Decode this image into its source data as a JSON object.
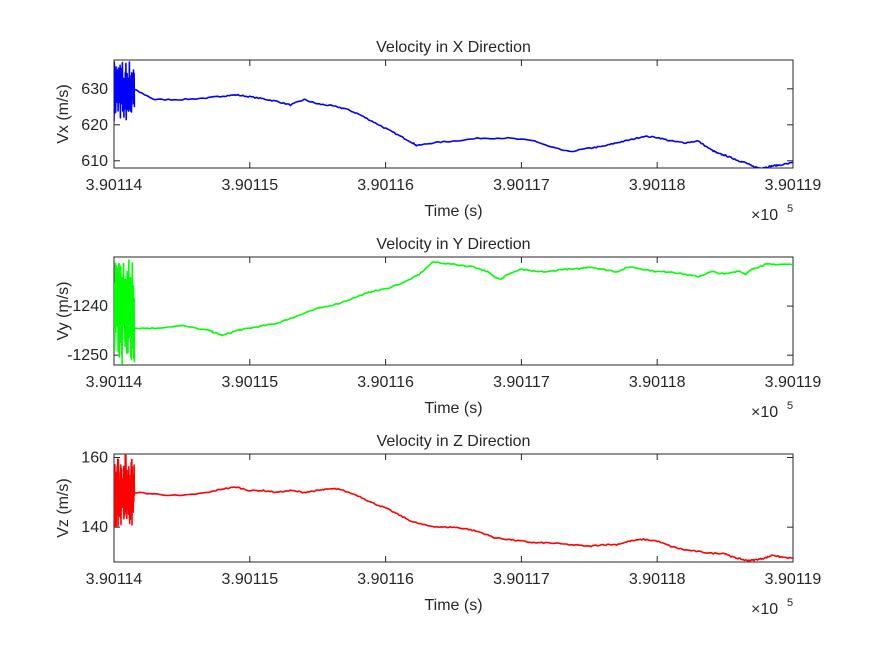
{
  "chart_data": [
    {
      "type": "line",
      "title": "Velocity in X Direction",
      "xlabel": "Time (s)",
      "ylabel": "Vx (m/s)",
      "x_exponent_base": "×10",
      "x_exponent": "5",
      "xlim": [
        3.90114,
        3.90119
      ],
      "ylim": [
        608,
        638
      ],
      "xticks": [
        3.90114,
        3.90115,
        3.90116,
        3.90117,
        3.90118,
        3.90119
      ],
      "xtick_labels": [
        "3.90114",
        "3.90115",
        "3.90116",
        "3.90117",
        "3.90118",
        "3.90119"
      ],
      "yticks": [
        610,
        620,
        630
      ],
      "ytick_labels": [
        "610",
        "620",
        "630"
      ],
      "color": "#0000ff",
      "burst": {
        "x_start": 3.90114,
        "x_end": 3.9011415,
        "y_min": 621,
        "y_max": 638
      },
      "series": [
        {
          "x": [
            3.9011415,
            3.901143,
            3.901145,
            3.901147,
            3.901148,
            3.901149,
            3.90115,
            3.901151,
            3.901152,
            3.901153,
            3.901154,
            3.901155,
            3.901156,
            3.901157,
            3.901158,
            3.901159,
            3.90116,
            3.901161,
            3.901162,
            3.9011623,
            3.9011635,
            3.901165,
            3.901167,
            3.901169,
            3.901171,
            3.901172,
            3.9011735,
            3.901175,
            3.901176,
            3.901177,
            3.901178,
            3.901179,
            3.90118,
            3.901181,
            3.901182,
            3.901183,
            3.901184,
            3.9011845,
            3.901185,
            3.9011855,
            3.901186,
            3.9011865,
            3.901187,
            3.9011875,
            3.901188,
            3.9011885,
            3.901189,
            3.90119
          ],
          "y": [
            629.8,
            627,
            627,
            627.5,
            628,
            628.3,
            627.8,
            627.2,
            626.5,
            625.5,
            627,
            625.8,
            625.3,
            624.5,
            623,
            621,
            619,
            617,
            615,
            614.2,
            615,
            615.5,
            616.3,
            616.3,
            615.5,
            614,
            612.5,
            613.5,
            614,
            615,
            615.8,
            616.8,
            616.5,
            615.5,
            615,
            615.5,
            613,
            612,
            611.5,
            610.8,
            610,
            609.5,
            608.5,
            608,
            608.2,
            608.6,
            608.8,
            609.5
          ]
        }
      ]
    },
    {
      "type": "line",
      "title": "Velocity in Y Direction",
      "xlabel": "Time (s)",
      "ylabel": "Vy (m/s)",
      "x_exponent_base": "×10",
      "x_exponent": "5",
      "xlim": [
        3.90114,
        3.90119
      ],
      "ylim": [
        -1252,
        -1230
      ],
      "xticks": [
        3.90114,
        3.90115,
        3.90116,
        3.90117,
        3.90118,
        3.90119
      ],
      "xtick_labels": [
        "3.90114",
        "3.90115",
        "3.90116",
        "3.90117",
        "3.90118",
        "3.90119"
      ],
      "yticks": [
        -1250,
        -1240
      ],
      "ytick_labels": [
        "-1250",
        "-1240"
      ],
      "color": "#00ff00",
      "burst": {
        "x_start": 3.90114,
        "x_end": 3.9011415,
        "y_min": -1252,
        "y_max": -1230
      },
      "series": [
        {
          "x": [
            3.9011415,
            3.901143,
            3.901145,
            3.901147,
            3.9011475,
            3.901148,
            3.901149,
            3.90115,
            3.901151,
            3.901152,
            3.901153,
            3.9011535,
            3.901155,
            3.9011565,
            3.901158,
            3.901159,
            3.90116,
            3.9011615,
            3.9011625,
            3.9011635,
            3.901165,
            3.9011665,
            3.9011675,
            3.901168,
            3.9011685,
            3.901169,
            3.90117,
            3.901171,
            3.901172,
            3.901173,
            3.901174,
            3.901175,
            3.901176,
            3.901177,
            3.901178,
            3.901179,
            3.90118,
            3.901181,
            3.901182,
            3.901183,
            3.901184,
            3.901185,
            3.901186,
            3.9011865,
            3.901187,
            3.9011875,
            3.901188,
            3.901189,
            3.90119
          ],
          "y": [
            -1244.5,
            -1244.5,
            -1244,
            -1245,
            -1245.5,
            -1246,
            -1245,
            -1244.5,
            -1244,
            -1243.5,
            -1242.5,
            -1242,
            -1240.5,
            -1239.5,
            -1238,
            -1237,
            -1236.5,
            -1235,
            -1233.5,
            -1231,
            -1231.5,
            -1232,
            -1233,
            -1234,
            -1234.5,
            -1233.5,
            -1232.5,
            -1233,
            -1233,
            -1232.5,
            -1232.5,
            -1232,
            -1232.5,
            -1233,
            -1232,
            -1232.5,
            -1233,
            -1233,
            -1233.5,
            -1234,
            -1233,
            -1233.5,
            -1232.8,
            -1233.5,
            -1232.5,
            -1232,
            -1231.5,
            -1231.5,
            -1231.5
          ]
        }
      ]
    },
    {
      "type": "line",
      "title": "Velocity in Z Direction",
      "xlabel": "Time (s)",
      "ylabel": "Vz (m/s)",
      "x_exponent_base": "×10",
      "x_exponent": "5",
      "xlim": [
        3.90114,
        3.90119
      ],
      "ylim": [
        130,
        161
      ],
      "xticks": [
        3.90114,
        3.90115,
        3.90116,
        3.90117,
        3.90118,
        3.90119
      ],
      "xtick_labels": [
        "3.90114",
        "3.90115",
        "3.90116",
        "3.90117",
        "3.90118",
        "3.90119"
      ],
      "yticks": [
        140,
        160
      ],
      "ytick_labels": [
        "140",
        "160"
      ],
      "color": "#ff0000",
      "burst": {
        "x_start": 3.90114,
        "x_end": 3.9011415,
        "y_min": 140,
        "y_max": 161
      },
      "series": [
        {
          "x": [
            3.9011415,
            3.901143,
            3.901145,
            3.901147,
            3.901148,
            3.901149,
            3.90115,
            3.901151,
            3.901152,
            3.901153,
            3.901154,
            3.901155,
            3.9011555,
            3.9011565,
            3.901158,
            3.901159,
            3.90116,
            3.901161,
            3.901162,
            3.901163,
            3.901164,
            3.901165,
            3.901166,
            3.901167,
            3.901168,
            3.901169,
            3.90117,
            3.901171,
            3.901172,
            3.9011735,
            3.901175,
            3.901176,
            3.901177,
            3.901178,
            3.901179,
            3.90118,
            3.901181,
            3.901182,
            3.901183,
            3.901184,
            3.901185,
            3.9011855,
            3.901186,
            3.9011865,
            3.901187,
            3.9011875,
            3.901188,
            3.9011885,
            3.901189,
            3.90119
          ],
          "y": [
            150,
            149.5,
            149,
            150,
            151,
            151.5,
            150.5,
            150.5,
            150,
            150.5,
            150,
            150.5,
            150.8,
            151,
            149,
            147,
            145.5,
            143.5,
            141.5,
            140.5,
            140,
            140,
            139.5,
            138.5,
            137,
            136.5,
            136,
            135.5,
            135.5,
            135,
            134.5,
            135,
            135,
            136,
            136.5,
            136,
            134.5,
            133.5,
            133,
            132.5,
            132.5,
            131.5,
            131,
            130.5,
            130.5,
            130.8,
            131.2,
            132,
            131.5,
            131
          ]
        }
      ]
    }
  ]
}
